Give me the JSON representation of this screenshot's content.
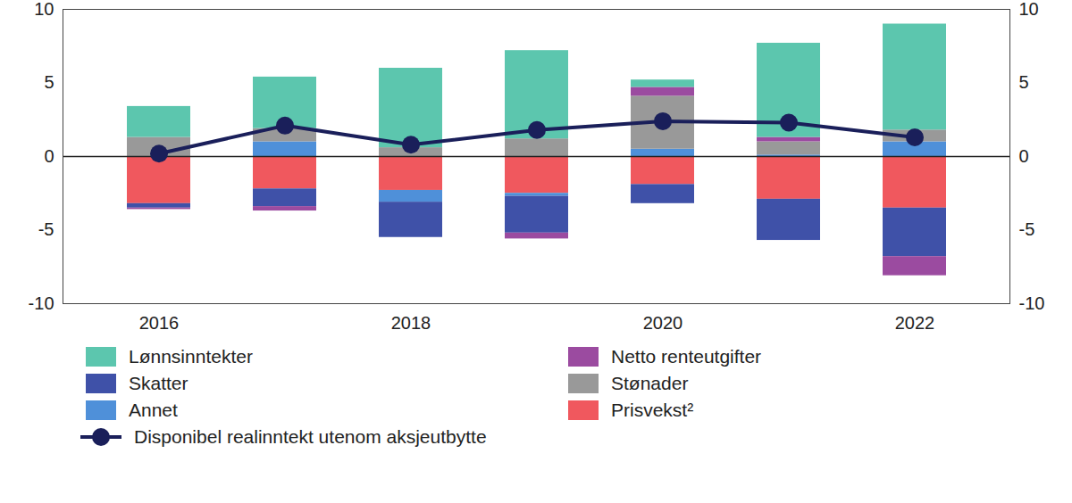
{
  "chart_data": {
    "type": "bar",
    "stacked": true,
    "categories": [
      "2016",
      null,
      "2018",
      null,
      "2020",
      null,
      "2022"
    ],
    "ylim": [
      -10,
      10
    ],
    "yticks": [
      -10,
      -5,
      0,
      5,
      10
    ],
    "grid": false,
    "legend": "bottom",
    "series": [
      {
        "name": "Lønnsinntekter",
        "type": "bar",
        "color": "#5cc6ae",
        "values": [
          2.1,
          3.5,
          5.4,
          6.0,
          0.5,
          6.4,
          7.2
        ]
      },
      {
        "name": "Netto renteutgifter",
        "type": "bar",
        "color": "#9b4ba0",
        "values": [
          -0.1,
          -0.3,
          0,
          -0.4,
          0.6,
          0.3,
          -1.3
        ]
      },
      {
        "name": "Skatter",
        "type": "bar",
        "color": "#3f51a8",
        "values": [
          -0.3,
          -1.2,
          -2.4,
          -2.5,
          -1.3,
          -2.8,
          -3.3
        ]
      },
      {
        "name": "Stønader",
        "type": "bar",
        "color": "#999999",
        "values": [
          1.3,
          0.9,
          0.6,
          1.2,
          3.6,
          0.9,
          0.8
        ]
      },
      {
        "name": "Annet",
        "type": "bar",
        "color": "#4f90d9",
        "values": [
          0,
          1.0,
          -0.8,
          -0.2,
          0.5,
          0.1,
          1.0
        ]
      },
      {
        "name": "Prisvekst²",
        "type": "bar",
        "color": "#f0585e",
        "values": [
          -3.2,
          -2.2,
          -2.3,
          -2.5,
          -1.9,
          -2.9,
          -3.5
        ]
      },
      {
        "name": "Disponibel realinntekt utenom aksjeutbytte",
        "type": "line",
        "marker": "circle",
        "color": "#1a1f5a",
        "values": [
          0.2,
          2.1,
          0.8,
          1.8,
          2.4,
          2.3,
          1.3
        ]
      }
    ]
  }
}
